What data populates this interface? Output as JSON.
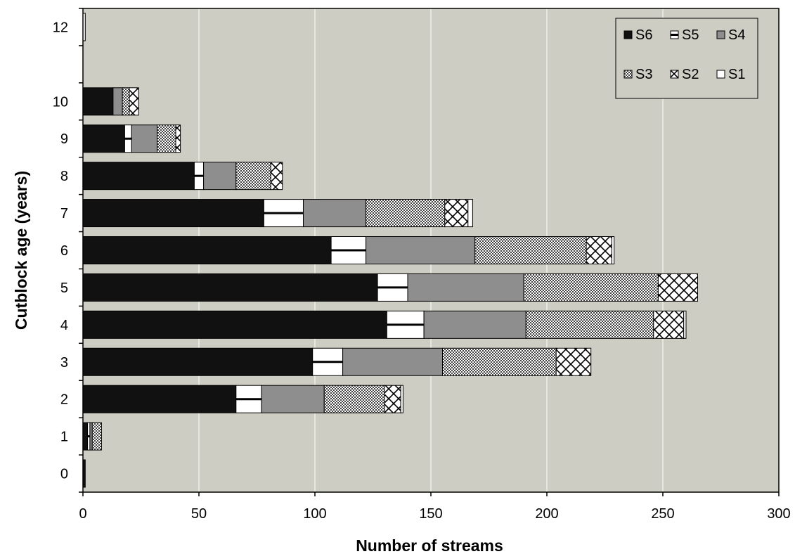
{
  "chart_data": {
    "type": "bar",
    "orientation": "horizontal",
    "stacked": true,
    "xlabel": "Number of streams",
    "ylabel": "Cutblock age (years)",
    "xlim": [
      0,
      300
    ],
    "x_ticks": [
      "0",
      "50",
      "100",
      "150",
      "200",
      "250",
      "300"
    ],
    "categories": [
      "0",
      "1",
      "2",
      "3",
      "4",
      "5",
      "6",
      "7",
      "8",
      "9",
      "10",
      "12"
    ],
    "grid": "vertical",
    "legend_position": "top-right",
    "background": "#cdcdc3",
    "series": [
      {
        "name": "S6",
        "pattern": "solid-black",
        "values": [
          1,
          2,
          66,
          99,
          131,
          127,
          107,
          78,
          48,
          18,
          13,
          0
        ]
      },
      {
        "name": "S5",
        "pattern": "white-hline",
        "values": [
          0,
          1,
          11,
          13,
          16,
          13,
          15,
          17,
          4,
          3,
          0,
          0
        ]
      },
      {
        "name": "S4",
        "pattern": "solid-gray",
        "values": [
          0,
          1,
          27,
          43,
          44,
          50,
          47,
          27,
          14,
          11,
          4,
          0
        ]
      },
      {
        "name": "S3",
        "pattern": "fine-check",
        "values": [
          0,
          4,
          26,
          49,
          55,
          58,
          48,
          34,
          15,
          8,
          3,
          0
        ]
      },
      {
        "name": "S2",
        "pattern": "cross-hatch",
        "values": [
          0,
          0,
          7,
          15,
          13,
          17,
          11,
          10,
          5,
          2,
          4,
          0
        ]
      },
      {
        "name": "S1",
        "pattern": "white",
        "values": [
          0,
          0,
          1,
          0,
          1,
          0,
          1,
          2,
          0,
          0,
          0,
          1
        ]
      }
    ]
  }
}
